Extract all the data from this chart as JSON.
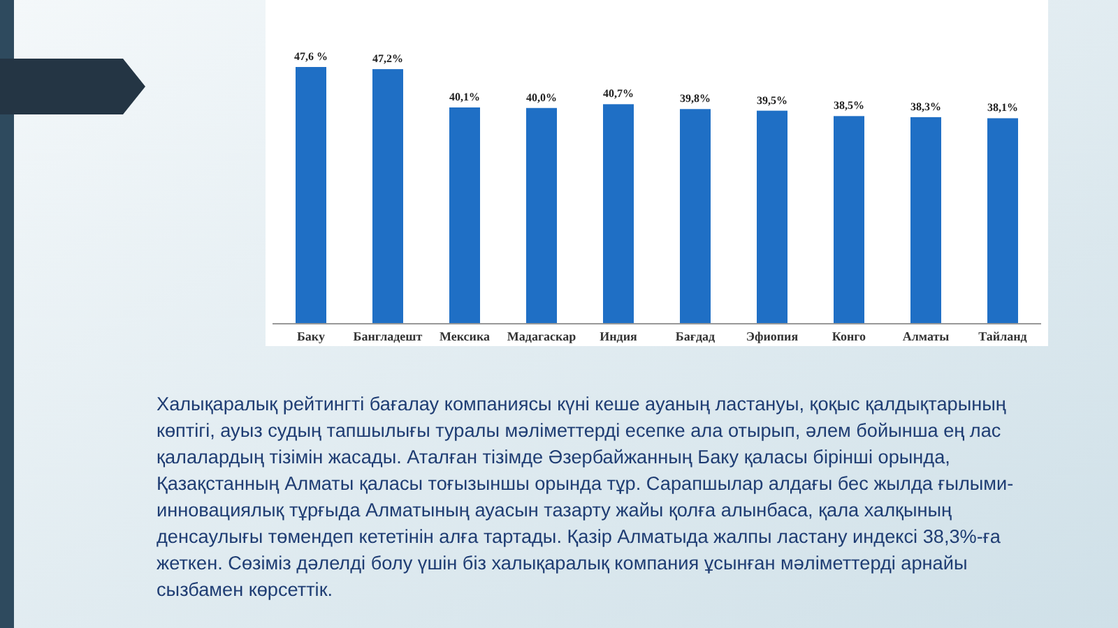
{
  "chart_data": {
    "type": "bar",
    "categories": [
      "Баку",
      "Бангладешт",
      "Мексика",
      "Мадагаскар",
      "Индия",
      "Бағдад",
      "Эфиопия",
      "Конго",
      "Алматы",
      "Тайланд"
    ],
    "values": [
      47.6,
      47.2,
      40.1,
      40.0,
      40.7,
      39.8,
      39.5,
      38.5,
      38.3,
      38.1
    ],
    "value_labels": [
      "47,6 %",
      "47,2%",
      "40,1%",
      "40,0%",
      "40,7%",
      "39,8%",
      "39,5%",
      "38,5%",
      "38,3%",
      "38,1%"
    ],
    "color": "#1f6fc5",
    "annotations": [
      "Халықаралық рейтингті бағалау компаниясы күні кеше ауаның ластануы, қоқыс қалдықтарының көптігі, ауыз судың тапшылығы туралы мәліметтерді есепке ала отырып, әлем бойынша ең лас қалалардың тізімін жасады. Аталған тізімде Әзербайжанның Баку қаласы бірінші орында, Қазақстанның Алматы қаласы тоғызыншы орында тұр. Сарапшылар алдағы бес жылда ғылыми-инновациялық тұрғыда Алматының ауасын тазарту жайы қолға алынбаса, қала халқының денсаулығы төмендеп кететінін алға тартады.  Қазір Алматыда жалпы ластану индексі 38,3%-ға жеткен. Сөзіміз дәлелді болу үшін біз халықаралық компания ұсынған мәліметтерді арнайы сызбамен көрсеттік."
    ]
  }
}
